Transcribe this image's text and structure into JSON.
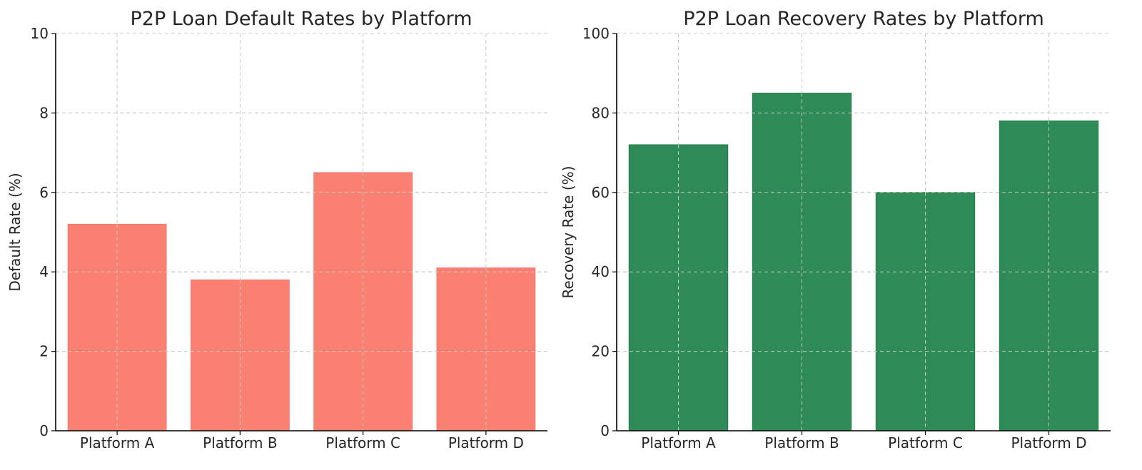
{
  "chart_data": [
    {
      "type": "bar",
      "title": "P2P Loan Default Rates by Platform",
      "xlabel": "",
      "ylabel": "Default Rate (%)",
      "categories": [
        "Platform A",
        "Platform B",
        "Platform C",
        "Platform D"
      ],
      "values": [
        5.2,
        3.8,
        6.5,
        4.1
      ],
      "ylim": [
        0,
        10
      ],
      "yticks": [
        0,
        2,
        4,
        6,
        8,
        10
      ],
      "color": "#fa8072",
      "edge_color": "#f4766a",
      "grid": true,
      "legend": "none"
    },
    {
      "type": "bar",
      "title": "P2P Loan Recovery Rates by Platform",
      "xlabel": "",
      "ylabel": "Recovery Rate (%)",
      "categories": [
        "Platform A",
        "Platform B",
        "Platform C",
        "Platform D"
      ],
      "values": [
        72,
        85,
        60,
        78
      ],
      "ylim": [
        0,
        100
      ],
      "yticks": [
        0,
        20,
        40,
        60,
        80,
        100
      ],
      "color": "#2e8b57",
      "edge_color": "#247a4b",
      "grid": true,
      "legend": "none"
    }
  ]
}
